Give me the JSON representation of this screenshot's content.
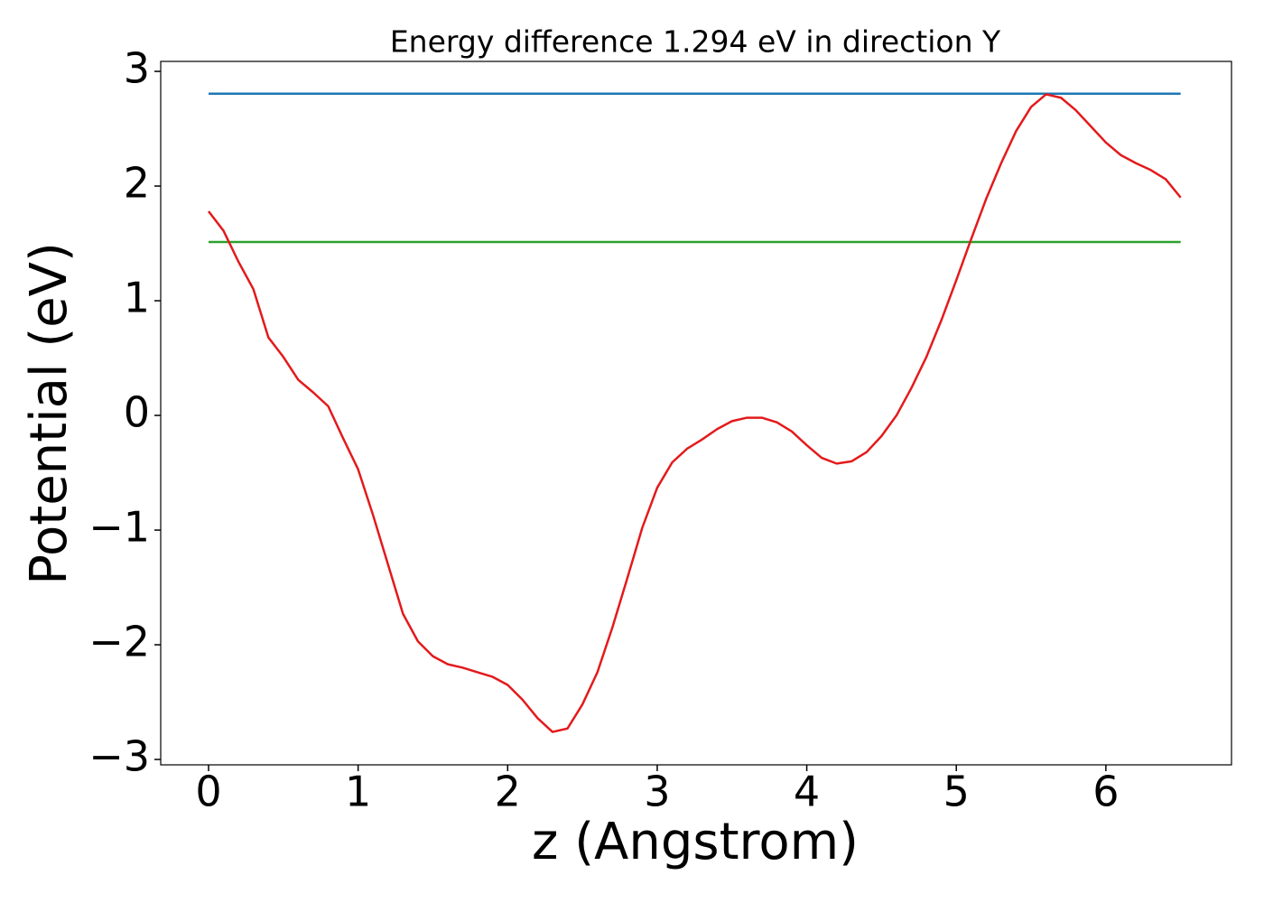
{
  "chart_data": {
    "type": "line",
    "title": "Energy difference 1.294 eV in direction Y",
    "xlabel": "z (Angstrom)",
    "ylabel": "Potential (eV)",
    "xlim": [
      -0.32,
      6.84
    ],
    "ylim": [
      -3.047,
      3.087
    ],
    "xticks": [
      0,
      1,
      2,
      3,
      4,
      5,
      6
    ],
    "yticks": [
      {
        "value": -3,
        "label": "−3"
      },
      {
        "value": -2,
        "label": "−2"
      },
      {
        "value": -1,
        "label": "−1"
      },
      0,
      1,
      2,
      3
    ],
    "grid": false,
    "series": [
      {
        "color": "#1f77b4",
        "x": [
          0,
          6.5
        ],
        "values": [
          2.806,
          2.806
        ]
      },
      {
        "color": "#2ca02c",
        "x": [
          0,
          6.5
        ],
        "values": [
          1.512,
          1.512
        ]
      },
      {
        "color": "#e31a1c",
        "x": [
          0,
          0.1,
          0.2,
          0.3,
          0.4,
          0.5,
          0.6,
          0.7,
          0.8,
          0.9,
          1.0,
          1.1,
          1.2,
          1.3,
          1.4,
          1.5,
          1.6,
          1.7,
          1.8,
          1.9,
          2.0,
          2.1,
          2.2,
          2.3,
          2.4,
          2.5,
          2.6,
          2.7,
          2.8,
          2.9,
          3.0,
          3.1,
          3.2,
          3.3,
          3.4,
          3.5,
          3.6,
          3.7,
          3.8,
          3.9,
          4.0,
          4.1,
          4.2,
          4.3,
          4.4,
          4.5,
          4.6,
          4.7,
          4.8,
          4.9,
          5.0,
          5.1,
          5.2,
          5.3,
          5.4,
          5.5,
          5.6,
          5.7,
          5.8,
          5.9,
          6.0,
          6.1,
          6.2,
          6.3,
          6.4,
          6.5
        ],
        "values": [
          1.78,
          1.61,
          1.34,
          1.1,
          0.68,
          0.51,
          0.31,
          0.2,
          0.08,
          -0.2,
          -0.47,
          -0.87,
          -1.3,
          -1.73,
          -1.97,
          -2.1,
          -2.17,
          -2.2,
          -2.24,
          -2.28,
          -2.35,
          -2.48,
          -2.64,
          -2.76,
          -2.73,
          -2.52,
          -2.24,
          -1.85,
          -1.42,
          -0.98,
          -0.63,
          -0.41,
          -0.29,
          -0.21,
          -0.12,
          -0.05,
          -0.02,
          -0.02,
          -0.06,
          -0.14,
          -0.26,
          -0.37,
          -0.42,
          -0.4,
          -0.32,
          -0.18,
          0.0,
          0.24,
          0.51,
          0.83,
          1.18,
          1.54,
          1.89,
          2.2,
          2.48,
          2.69,
          2.8,
          2.77,
          2.66,
          2.52,
          2.38,
          2.27,
          2.2,
          2.14,
          2.06,
          1.9
        ]
      }
    ]
  }
}
